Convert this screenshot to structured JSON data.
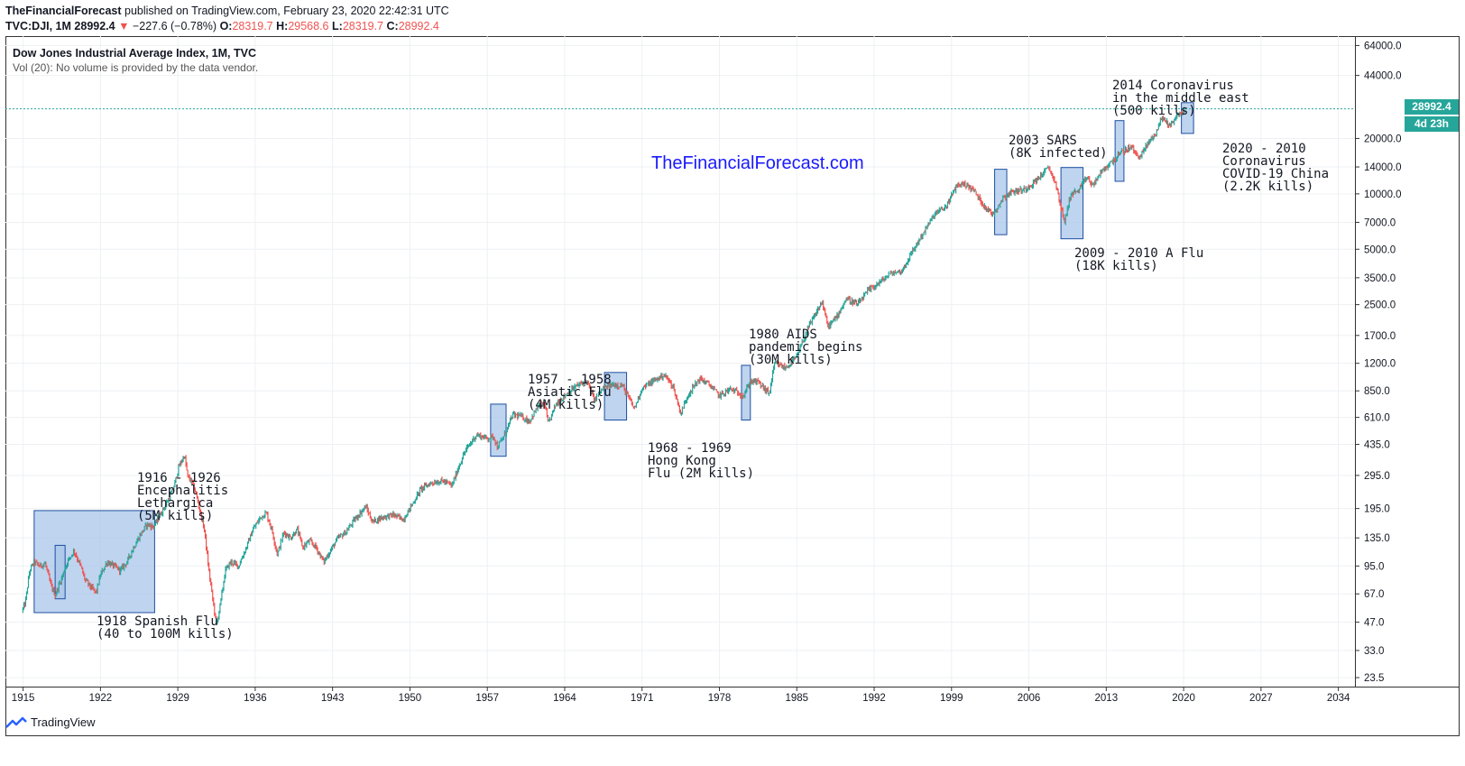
{
  "header": {
    "publisher": "TheFinancialForecast",
    "published_text": " published on TradingView.com, February 23, 2020 22:42:31 UTC"
  },
  "ohlc": {
    "symbol": "TVC:DJI, 1M",
    "last": "28992.4",
    "arrow": "▼",
    "change": "−227.6 (−0.78%)",
    "o_label": "O:",
    "o": "28319.7",
    "h_label": "H:",
    "h": "29568.6",
    "l_label": "L:",
    "l": "28319.7",
    "c_label": "C:",
    "c": "28992.4"
  },
  "legend": {
    "title": "Dow Jones Industrial Average Index, 1M, TVC",
    "volume": "Vol (20): No volume is provided by the data vendor."
  },
  "watermark": "TheFinancialForecast.com",
  "badges": {
    "price": "28992.4",
    "countdown": "4d 23h"
  },
  "footer": {
    "brand": "TradingView"
  },
  "colors": {
    "up": "#26a69a",
    "down": "#ef5350",
    "box_fill": "#a9c6ea",
    "box_stroke": "#1c4fa0",
    "watermark": "#1a1aff",
    "price_line": "#26a69a"
  },
  "annotations": [
    {
      "id": "spanish-flu",
      "text": "1918 Spanish Flu\n(40 to 100M kills)"
    },
    {
      "id": "encephalitis",
      "text": "1916 - 1926\nEncephalitis\nLethargica\n(5M kills)"
    },
    {
      "id": "asiatic-flu",
      "text": "1957 - 1958\nAsiatic Flu\n(4M kills)"
    },
    {
      "id": "hong-kong-flu",
      "text": "1968 - 1969\nHong Kong\nFlu (2M kills)"
    },
    {
      "id": "aids",
      "text": "1980 AIDS\npandemic begins\n(30M kills)"
    },
    {
      "id": "sars",
      "text": "2003 SARS\n(8K infected)"
    },
    {
      "id": "a-flu",
      "text": "2009 - 2010 A Flu\n(18K kills)"
    },
    {
      "id": "mers",
      "text": "2014 Coronavirus\nin the middle east\n(500 kills)"
    },
    {
      "id": "covid",
      "text": "2020 - 2010\nCoronavirus\nCOVID-19 China\n(2.2K kills)"
    }
  ],
  "chart_data": {
    "type": "line",
    "scale": "log",
    "x_ticks": [
      "1915",
      "1922",
      "1929",
      "1936",
      "1943",
      "1950",
      "1957",
      "1964",
      "1971",
      "1978",
      "1985",
      "1992",
      "1999",
      "2006",
      "2013",
      "2020",
      "2027",
      "2034"
    ],
    "y_ticks": [
      "64000.0",
      "44000.0",
      "20000.0",
      "14000.0",
      "10000.0",
      "7000.0",
      "5000.0",
      "3500.0",
      "2500.0",
      "1700.0",
      "1200.0",
      "850.0",
      "610.0",
      "435.0",
      "295.0",
      "195.0",
      "135.0",
      "95.0",
      "67.0",
      "47.0",
      "33.0",
      "23.5"
    ],
    "ylim": [
      21,
      72000
    ],
    "xlim": [
      1913.4,
      2035.5
    ],
    "series": [
      {
        "points": [
          [
            1914.9,
            54
          ],
          [
            1915.2,
            60
          ],
          [
            1915.6,
            90
          ],
          [
            1916.0,
            100
          ],
          [
            1916.5,
            95
          ],
          [
            1917.0,
            98
          ],
          [
            1917.5,
            75
          ],
          [
            1917.9,
            66
          ],
          [
            1918.5,
            82
          ],
          [
            1919.0,
            100
          ],
          [
            1919.6,
            115
          ],
          [
            1920.2,
            95
          ],
          [
            1920.6,
            80
          ],
          [
            1921.2,
            72
          ],
          [
            1921.6,
            68
          ],
          [
            1922.0,
            85
          ],
          [
            1922.6,
            100
          ],
          [
            1923.2,
            95
          ],
          [
            1923.8,
            90
          ],
          [
            1924.4,
            100
          ],
          [
            1925.0,
            120
          ],
          [
            1925.6,
            140
          ],
          [
            1926.2,
            160
          ],
          [
            1926.8,
            155
          ],
          [
            1927.4,
            180
          ],
          [
            1928.0,
            210
          ],
          [
            1928.6,
            250
          ],
          [
            1929.1,
            330
          ],
          [
            1929.6,
            380
          ],
          [
            1929.9,
            290
          ],
          [
            1930.3,
            270
          ],
          [
            1930.6,
            240
          ],
          [
            1931.0,
            190
          ],
          [
            1931.4,
            150
          ],
          [
            1931.8,
            90
          ],
          [
            1932.2,
            60
          ],
          [
            1932.5,
            45
          ],
          [
            1932.9,
            62
          ],
          [
            1933.3,
            90
          ],
          [
            1933.8,
            100
          ],
          [
            1934.5,
            95
          ],
          [
            1935.2,
            120
          ],
          [
            1935.8,
            150
          ],
          [
            1936.5,
            175
          ],
          [
            1937.0,
            185
          ],
          [
            1937.5,
            150
          ],
          [
            1938.0,
            110
          ],
          [
            1938.6,
            145
          ],
          [
            1939.2,
            135
          ],
          [
            1939.8,
            150
          ],
          [
            1940.3,
            120
          ],
          [
            1940.9,
            130
          ],
          [
            1941.5,
            120
          ],
          [
            1942.2,
            100
          ],
          [
            1942.8,
            115
          ],
          [
            1943.5,
            135
          ],
          [
            1944.2,
            145
          ],
          [
            1945.0,
            170
          ],
          [
            1946.0,
            200
          ],
          [
            1946.6,
            165
          ],
          [
            1947.5,
            175
          ],
          [
            1948.5,
            180
          ],
          [
            1949.4,
            170
          ],
          [
            1950.3,
            210
          ],
          [
            1951.0,
            250
          ],
          [
            1952.0,
            270
          ],
          [
            1953.0,
            275
          ],
          [
            1953.8,
            260
          ],
          [
            1954.5,
            340
          ],
          [
            1955.0,
            400
          ],
          [
            1956.0,
            490
          ],
          [
            1957.0,
            470
          ],
          [
            1957.6,
            480
          ],
          [
            1957.9,
            420
          ],
          [
            1958.5,
            480
          ],
          [
            1959.3,
            630
          ],
          [
            1960.0,
            620
          ],
          [
            1960.8,
            580
          ],
          [
            1961.6,
            700
          ],
          [
            1962.2,
            720
          ],
          [
            1962.5,
            560
          ],
          [
            1963.2,
            720
          ],
          [
            1964.0,
            800
          ],
          [
            1965.0,
            900
          ],
          [
            1966.0,
            960
          ],
          [
            1966.7,
            760
          ],
          [
            1967.5,
            880
          ],
          [
            1968.5,
            920
          ],
          [
            1969.2,
            910
          ],
          [
            1970.3,
            680
          ],
          [
            1971.0,
            880
          ],
          [
            1972.0,
            960
          ],
          [
            1973.0,
            1040
          ],
          [
            1973.8,
            900
          ],
          [
            1974.5,
            640
          ],
          [
            1975.2,
            820
          ],
          [
            1976.2,
            990
          ],
          [
            1977.0,
            930
          ],
          [
            1978.0,
            800
          ],
          [
            1979.0,
            870
          ],
          [
            1980.2,
            800
          ],
          [
            1980.8,
            960
          ],
          [
            1981.5,
            950
          ],
          [
            1982.5,
            820
          ],
          [
            1983.0,
            1200
          ],
          [
            1984.0,
            1130
          ],
          [
            1985.0,
            1300
          ],
          [
            1986.0,
            1850
          ],
          [
            1987.3,
            2600
          ],
          [
            1987.8,
            1900
          ],
          [
            1988.5,
            2100
          ],
          [
            1989.5,
            2700
          ],
          [
            1990.5,
            2500
          ],
          [
            1991.5,
            3000
          ],
          [
            1992.5,
            3300
          ],
          [
            1993.5,
            3700
          ],
          [
            1994.5,
            3800
          ],
          [
            1995.5,
            4900
          ],
          [
            1996.5,
            6200
          ],
          [
            1997.5,
            7800
          ],
          [
            1998.5,
            8500
          ],
          [
            1999.5,
            11200
          ],
          [
            2000.2,
            11300
          ],
          [
            2001.0,
            10500
          ],
          [
            2001.7,
            9000
          ],
          [
            2002.7,
            7700
          ],
          [
            2003.0,
            8200
          ],
          [
            2003.7,
            9600
          ],
          [
            2004.5,
            10300
          ],
          [
            2005.5,
            10500
          ],
          [
            2006.5,
            11600
          ],
          [
            2007.8,
            13900
          ],
          [
            2008.4,
            11500
          ],
          [
            2009.2,
            7000
          ],
          [
            2009.8,
            10000
          ],
          [
            2010.5,
            10400
          ],
          [
            2011.3,
            12400
          ],
          [
            2011.7,
            11000
          ],
          [
            2012.5,
            13000
          ],
          [
            2013.5,
            15000
          ],
          [
            2014.5,
            17000
          ],
          [
            2015.3,
            18000
          ],
          [
            2015.7,
            16300
          ],
          [
            2016.1,
            16000
          ],
          [
            2016.8,
            19000
          ],
          [
            2017.5,
            21500
          ],
          [
            2018.0,
            26000
          ],
          [
            2018.8,
            23500
          ],
          [
            2019.3,
            26400
          ],
          [
            2019.7,
            27000
          ],
          [
            2020.1,
            28992
          ]
        ]
      }
    ],
    "highlight_boxes": [
      {
        "x0": 1916.0,
        "x1": 1926.9,
        "y0": 53,
        "y1": 190
      },
      {
        "x0": 1917.9,
        "x1": 1918.8,
        "y0": 63,
        "y1": 123
      },
      {
        "x0": 1957.3,
        "x1": 1958.7,
        "y0": 375,
        "y1": 720
      },
      {
        "x0": 1967.6,
        "x1": 1969.6,
        "y0": 590,
        "y1": 1070
      },
      {
        "x0": 1980.0,
        "x1": 1980.8,
        "y0": 590,
        "y1": 1170
      },
      {
        "x0": 2002.9,
        "x1": 2004.0,
        "y0": 6000,
        "y1": 13600
      },
      {
        "x0": 2008.9,
        "x1": 2010.9,
        "y0": 5700,
        "y1": 13900
      },
      {
        "x0": 2013.8,
        "x1": 2014.6,
        "y0": 11700,
        "y1": 25000
      },
      {
        "x0": 2019.8,
        "x1": 2020.9,
        "y0": 21300,
        "y1": 31300
      }
    ]
  }
}
